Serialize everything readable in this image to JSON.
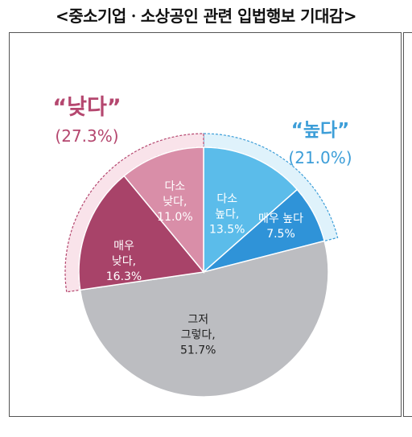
{
  "title": "<중소기업ㆍ소상공인 관련 입법행보 기대감>",
  "chart_data": {
    "type": "pie",
    "title": "<중소기업ㆍ소상공인 관련 입법행보 기대감>",
    "slices": [
      {
        "label": [
          "다소",
          "높다,"
        ],
        "value": 13.5,
        "value_text": "13.5%",
        "color": "#5bbcea"
      },
      {
        "label": [
          "매우 높다"
        ],
        "value": 7.5,
        "value_text": "7.5%",
        "color": "#2f93d8"
      },
      {
        "label": [
          "그저",
          "그렇다,"
        ],
        "value": 51.7,
        "value_text": "51.7%",
        "color": "#bcbdc1"
      },
      {
        "label": [
          "매우",
          "낮다,"
        ],
        "value": 16.3,
        "value_text": "16.3%",
        "color": "#a84369"
      },
      {
        "label": [
          "다소",
          "낮다,"
        ],
        "value": 11.0,
        "value_text": "11.0%",
        "color": "#d98ea8"
      }
    ],
    "groups": [
      {
        "label": "“낮다”",
        "value_text": "(27.3%)",
        "value": 27.3,
        "color": "#b5476f",
        "fill": "#f9e3ea"
      },
      {
        "label": "“높다”",
        "value_text": "(21.0%)",
        "value": 21.0,
        "color": "#3d9ed8",
        "fill": "#dff2fb"
      }
    ]
  }
}
